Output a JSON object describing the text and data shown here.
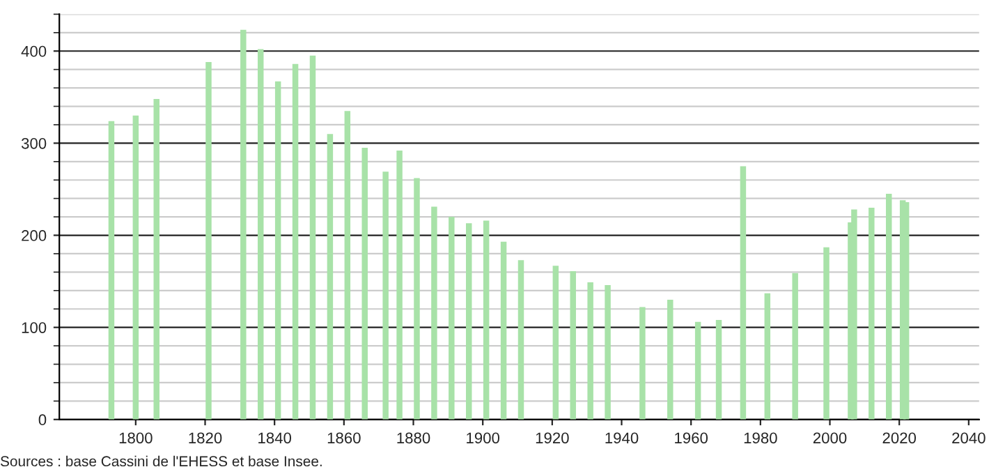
{
  "chart_data": {
    "type": "bar",
    "x": [
      1793,
      1800,
      1806,
      1821,
      1831,
      1836,
      1841,
      1846,
      1851,
      1856,
      1861,
      1866,
      1872,
      1876,
      1881,
      1886,
      1891,
      1896,
      1901,
      1906,
      1911,
      1921,
      1926,
      1931,
      1936,
      1946,
      1954,
      1962,
      1968,
      1975,
      1982,
      1990,
      1999,
      2006,
      2007,
      2012,
      2017,
      2021,
      2022
    ],
    "values": [
      324,
      330,
      348,
      388,
      423,
      402,
      367,
      386,
      395,
      310,
      335,
      295,
      269,
      292,
      262,
      231,
      220,
      213,
      216,
      193,
      173,
      167,
      161,
      149,
      146,
      122,
      130,
      106,
      108,
      275,
      137,
      159,
      187,
      214,
      228,
      230,
      245,
      238,
      236
    ],
    "color": "#a8e2a8",
    "xlim": [
      1778,
      2043
    ],
    "xticks": [
      1800,
      1820,
      1840,
      1860,
      1880,
      1900,
      1920,
      1940,
      1960,
      1980,
      2000,
      2020,
      2040
    ],
    "ylim": [
      0,
      440
    ],
    "yticks": [
      0,
      100,
      200,
      300,
      400
    ],
    "grid": "y",
    "annotations": [
      "Sources : base Cassini de l'EHESS et base Insee."
    ]
  }
}
